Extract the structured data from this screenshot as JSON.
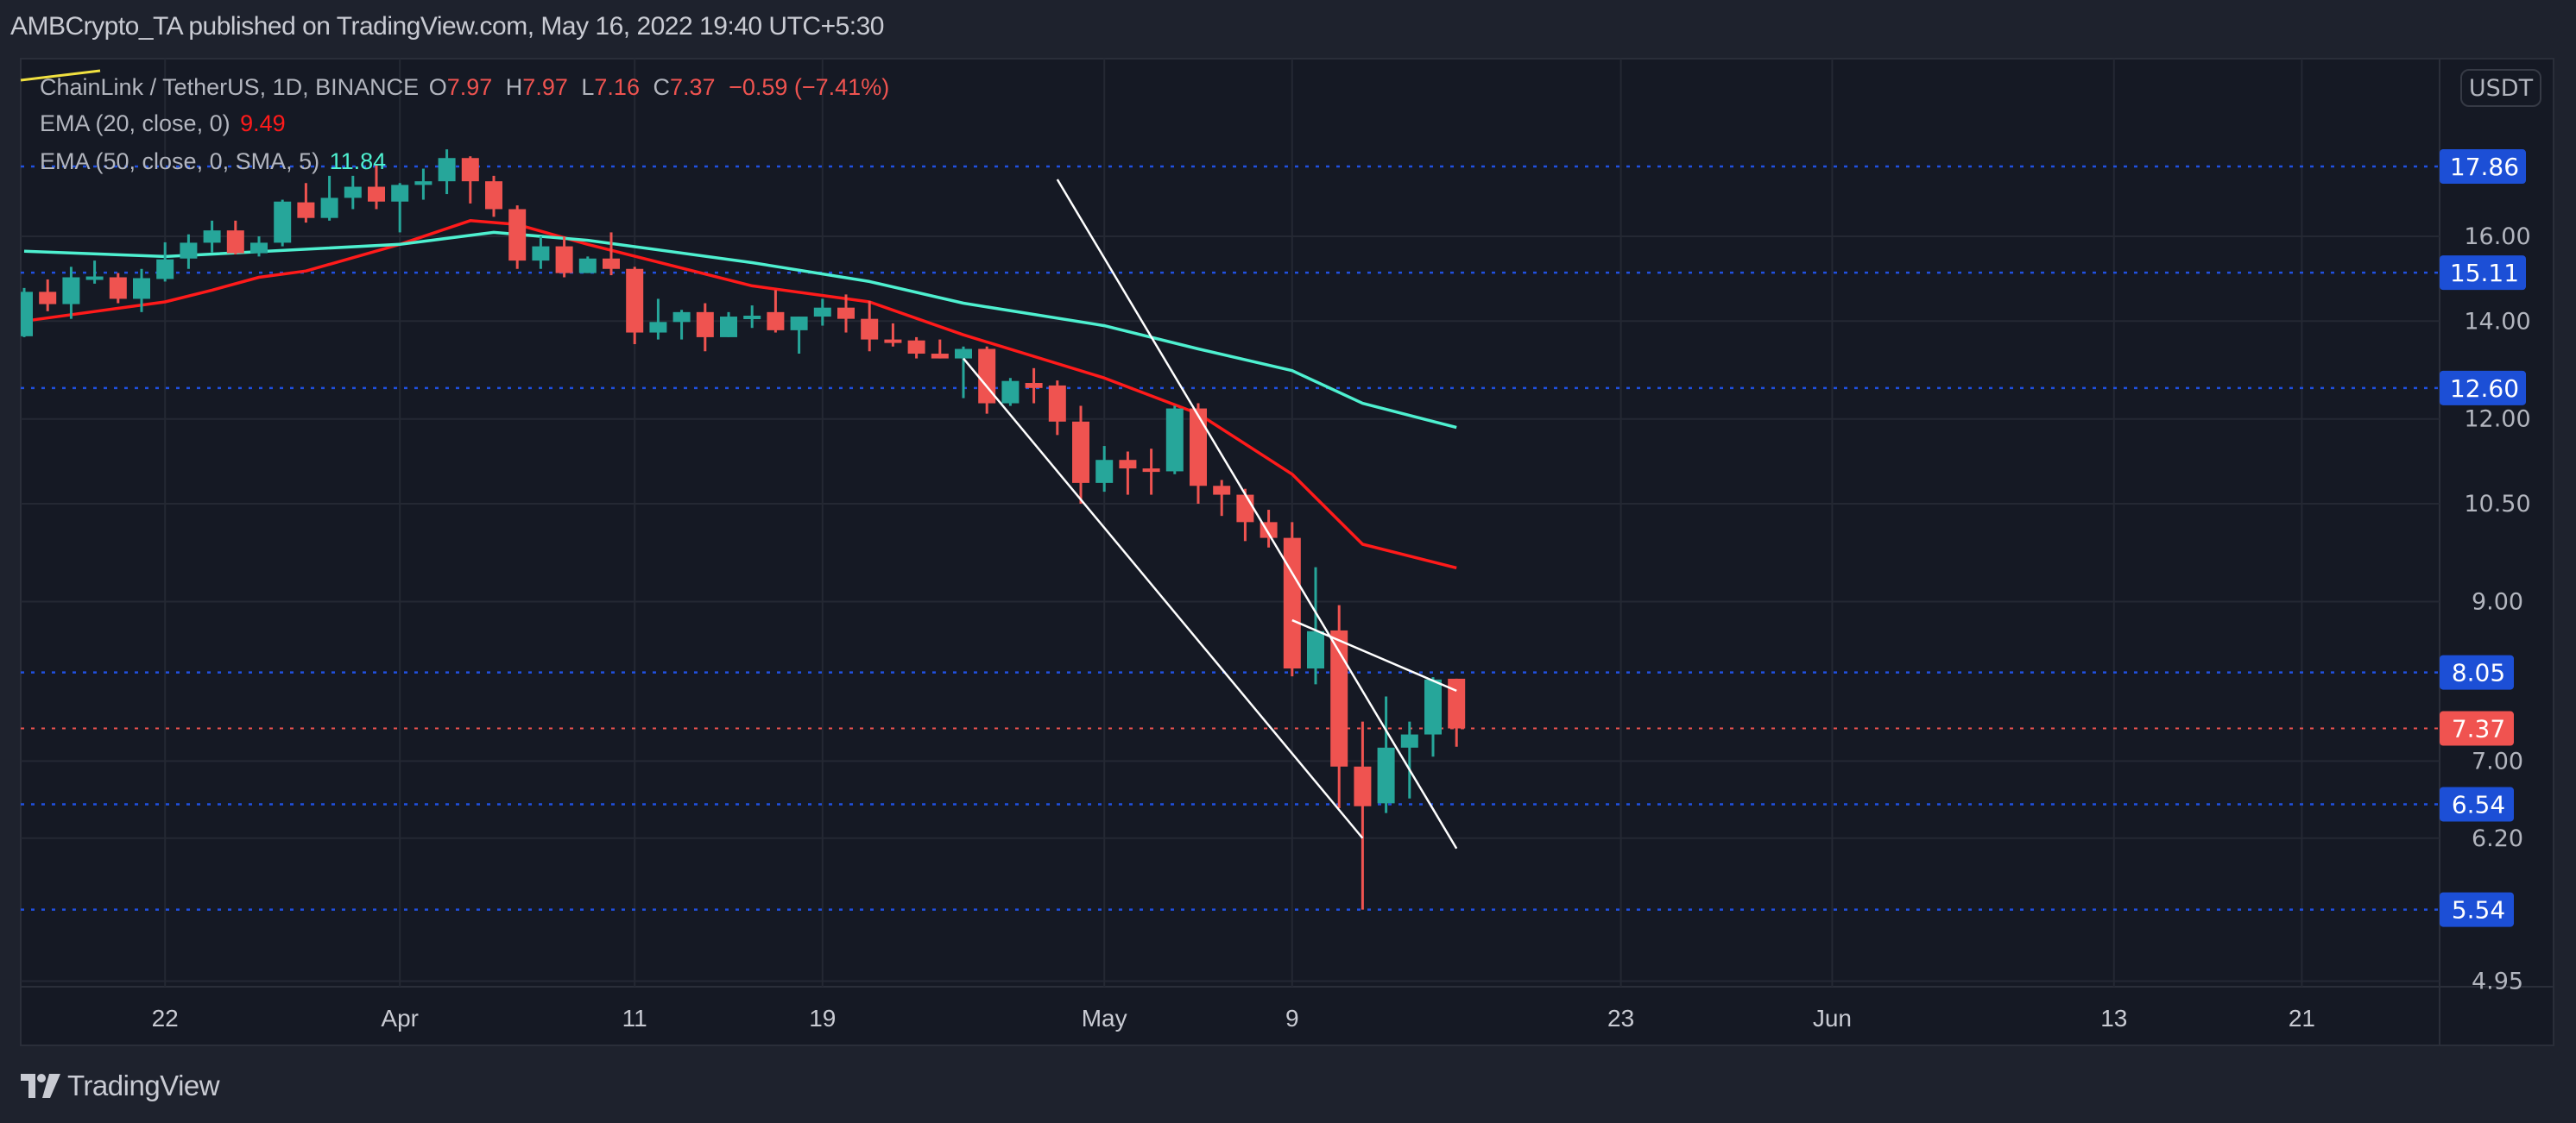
{
  "header": {
    "published": "AMBCrypto_TA published on TradingView.com, May 16, 2022 19:40 UTC+5:30"
  },
  "legend": {
    "symbol": "ChainLink / TetherUS, 1D, BINANCE",
    "o_label": "O",
    "o": "7.97",
    "h_label": "H",
    "h": "7.97",
    "l_label": "L",
    "l": "7.16",
    "c_label": "C",
    "c": "7.37",
    "change": "−0.59 (−7.41%)",
    "ema20_label": "EMA (20, close, 0)",
    "ema20_value": "9.49",
    "ema50_label": "EMA (50, close, 0, SMA, 5)",
    "ema50_value": "11.84"
  },
  "currency": "USDT",
  "logo": {
    "text": "TradingView"
  },
  "colors": {
    "up": "#26a69a",
    "down": "#ef5350",
    "ema20": "#ff1a1a",
    "ema50": "#4ef0d0",
    "level_badge": "#1c4fd6",
    "last_price_badge": "#f05350",
    "trendline": "#ffffff"
  },
  "chart_data": {
    "type": "candlestick",
    "y_scale": "log",
    "ylim": [
      4.95,
      19.0
    ],
    "grid": true,
    "y_ticks": [
      "16.00",
      "14.00",
      "12.00",
      "10.50",
      "9.00",
      "7.00",
      "6.20",
      "4.95"
    ],
    "x_ticks": [
      {
        "date": "2022-03-22",
        "label": "22"
      },
      {
        "date": "2022-04-01",
        "label": "Apr"
      },
      {
        "date": "2022-04-11",
        "label": "11"
      },
      {
        "date": "2022-04-19",
        "label": "19"
      },
      {
        "date": "2022-05-01",
        "label": "May"
      },
      {
        "date": "2022-05-09",
        "label": "9"
      },
      {
        "date": "2022-05-23",
        "label": "23"
      },
      {
        "date": "2022-06-01",
        "label": "Jun"
      },
      {
        "date": "2022-06-13",
        "label": "13"
      },
      {
        "date": "2022-06-21",
        "label": "21"
      }
    ],
    "candles_columns": [
      "date",
      "open",
      "high",
      "low",
      "close"
    ],
    "candles": [
      [
        "2022-03-16",
        13.67,
        14.75,
        13.65,
        14.66
      ],
      [
        "2022-03-17",
        14.66,
        14.95,
        14.22,
        14.38
      ],
      [
        "2022-03-18",
        14.38,
        15.25,
        14.05,
        15.0
      ],
      [
        "2022-03-19",
        15.0,
        15.4,
        14.85,
        15.02
      ],
      [
        "2022-03-20",
        15.0,
        15.1,
        14.4,
        14.5
      ],
      [
        "2022-03-21",
        14.5,
        15.2,
        14.2,
        14.98
      ],
      [
        "2022-03-22",
        14.96,
        15.85,
        14.9,
        15.43
      ],
      [
        "2022-03-23",
        15.45,
        16.05,
        15.2,
        15.84
      ],
      [
        "2022-03-24",
        15.84,
        16.4,
        15.6,
        16.15
      ],
      [
        "2022-03-25",
        16.15,
        16.4,
        15.55,
        15.58
      ],
      [
        "2022-03-26",
        15.58,
        16.0,
        15.5,
        15.84
      ],
      [
        "2022-03-27",
        15.84,
        16.95,
        15.75,
        16.9
      ],
      [
        "2022-03-28",
        16.88,
        17.4,
        16.35,
        16.47
      ],
      [
        "2022-03-29",
        16.47,
        17.6,
        16.4,
        17.0
      ],
      [
        "2022-03-30",
        17.0,
        17.6,
        16.7,
        17.3
      ],
      [
        "2022-03-31",
        17.3,
        17.9,
        16.7,
        16.9
      ],
      [
        "2022-04-01",
        16.9,
        17.4,
        16.1,
        17.35
      ],
      [
        "2022-04-02",
        17.35,
        17.8,
        16.95,
        17.45
      ],
      [
        "2022-04-03",
        17.45,
        18.35,
        17.1,
        18.1
      ],
      [
        "2022-04-04",
        18.1,
        18.15,
        16.85,
        17.45
      ],
      [
        "2022-04-05",
        17.45,
        17.6,
        16.5,
        16.7
      ],
      [
        "2022-04-06",
        16.7,
        16.8,
        15.2,
        15.4
      ],
      [
        "2022-04-07",
        15.4,
        16.0,
        15.2,
        15.75
      ],
      [
        "2022-04-08",
        15.75,
        16.0,
        15.0,
        15.1
      ],
      [
        "2022-04-09",
        15.1,
        15.5,
        15.1,
        15.45
      ],
      [
        "2022-04-10",
        15.45,
        16.1,
        15.05,
        15.2
      ],
      [
        "2022-04-11",
        15.2,
        15.25,
        13.5,
        13.75
      ],
      [
        "2022-04-12",
        13.75,
        14.5,
        13.6,
        13.98
      ],
      [
        "2022-04-13",
        13.98,
        14.25,
        13.6,
        14.2
      ],
      [
        "2022-04-14",
        14.2,
        14.4,
        13.35,
        13.65
      ],
      [
        "2022-04-15",
        13.65,
        14.2,
        13.65,
        14.1
      ],
      [
        "2022-04-16",
        14.1,
        14.35,
        13.85,
        14.12
      ],
      [
        "2022-04-17",
        14.2,
        14.7,
        13.75,
        13.8
      ],
      [
        "2022-04-18",
        13.8,
        14.1,
        13.3,
        14.1
      ],
      [
        "2022-04-19",
        14.1,
        14.5,
        13.9,
        14.3
      ],
      [
        "2022-04-20",
        14.3,
        14.6,
        13.75,
        14.05
      ],
      [
        "2022-04-21",
        14.05,
        14.45,
        13.35,
        13.6
      ],
      [
        "2022-04-22",
        13.6,
        13.95,
        13.45,
        13.58
      ],
      [
        "2022-04-23",
        13.58,
        13.65,
        13.2,
        13.3
      ],
      [
        "2022-04-24",
        13.3,
        13.6,
        13.2,
        13.2
      ],
      [
        "2022-04-25",
        13.2,
        13.45,
        12.4,
        13.4
      ],
      [
        "2022-04-26",
        13.4,
        13.45,
        12.1,
        12.3
      ],
      [
        "2022-04-27",
        12.3,
        12.8,
        12.25,
        12.74
      ],
      [
        "2022-04-28",
        12.7,
        13.0,
        12.3,
        12.6
      ],
      [
        "2022-04-29",
        12.65,
        12.75,
        11.7,
        11.95
      ],
      [
        "2022-04-30",
        11.95,
        12.25,
        10.5,
        10.85
      ],
      [
        "2022-05-01",
        10.85,
        11.5,
        10.7,
        11.25
      ],
      [
        "2022-05-02",
        11.25,
        11.4,
        10.65,
        11.1
      ],
      [
        "2022-05-03",
        11.1,
        11.45,
        10.65,
        11.05
      ],
      [
        "2022-05-04",
        11.05,
        12.25,
        11.0,
        12.2
      ],
      [
        "2022-05-05",
        12.2,
        12.3,
        10.5,
        10.8
      ],
      [
        "2022-05-06",
        10.8,
        10.9,
        10.3,
        10.65
      ],
      [
        "2022-05-07",
        10.65,
        10.75,
        9.9,
        10.2
      ],
      [
        "2022-05-08",
        10.2,
        10.4,
        9.8,
        9.95
      ],
      [
        "2022-05-09",
        9.95,
        10.2,
        8.0,
        8.1
      ],
      [
        "2022-05-10",
        8.1,
        9.5,
        7.9,
        8.59
      ],
      [
        "2022-05-11",
        8.6,
        8.95,
        6.5,
        6.94
      ],
      [
        "2022-05-12",
        6.94,
        7.45,
        5.54,
        6.52
      ],
      [
        "2022-05-13",
        6.55,
        7.75,
        6.45,
        7.15
      ],
      [
        "2022-05-14",
        7.15,
        7.45,
        6.6,
        7.3
      ],
      [
        "2022-05-15",
        7.3,
        7.99,
        7.05,
        7.96
      ],
      [
        "2022-05-16",
        7.97,
        7.97,
        7.16,
        7.37
      ]
    ],
    "series": [
      {
        "name": "EMA (20, close, 0)",
        "points": [
          [
            "2022-03-16",
            14.0
          ],
          [
            "2022-03-22",
            14.43
          ],
          [
            "2022-03-24",
            14.7
          ],
          [
            "2022-03-26",
            15.0
          ],
          [
            "2022-03-28",
            15.15
          ],
          [
            "2022-04-01",
            15.8
          ],
          [
            "2022-04-04",
            16.4
          ],
          [
            "2022-04-06",
            16.3
          ],
          [
            "2022-04-09",
            15.8
          ],
          [
            "2022-04-16",
            14.8
          ],
          [
            "2022-04-21",
            14.43
          ],
          [
            "2022-04-25",
            13.7
          ],
          [
            "2022-05-01",
            12.8
          ],
          [
            "2022-05-05",
            12.1
          ],
          [
            "2022-05-09",
            11.0
          ],
          [
            "2022-05-12",
            9.85
          ],
          [
            "2022-05-16",
            9.49
          ]
        ]
      },
      {
        "name": "EMA (50, close, 0, SMA, 5)",
        "points": [
          [
            "2022-03-16",
            15.63
          ],
          [
            "2022-03-22",
            15.5
          ],
          [
            "2022-04-01",
            15.8
          ],
          [
            "2022-04-05",
            16.1
          ],
          [
            "2022-04-09",
            15.9
          ],
          [
            "2022-04-16",
            15.35
          ],
          [
            "2022-04-21",
            14.9
          ],
          [
            "2022-04-25",
            14.4
          ],
          [
            "2022-05-01",
            13.9
          ],
          [
            "2022-05-05",
            13.4
          ],
          [
            "2022-05-09",
            12.95
          ],
          [
            "2022-05-12",
            12.3
          ],
          [
            "2022-05-16",
            11.84
          ]
        ]
      }
    ],
    "horizontal_levels": [
      17.86,
      15.11,
      12.6,
      8.05,
      6.54,
      5.54
    ],
    "level_labels": [
      "17.86",
      "15.11",
      "12.60",
      "8.05",
      "6.54",
      "5.54"
    ],
    "last_price": 7.37,
    "last_price_label": "7.37",
    "trendlines": [
      [
        [
          "2022-04-29",
          17.5
        ],
        [
          "2022-05-16",
          6.1
        ]
      ],
      [
        [
          "2022-04-25",
          13.2
        ],
        [
          "2022-05-12",
          6.2
        ]
      ],
      [
        [
          "2022-05-09",
          8.74
        ],
        [
          "2022-05-16",
          7.82
        ]
      ]
    ]
  }
}
